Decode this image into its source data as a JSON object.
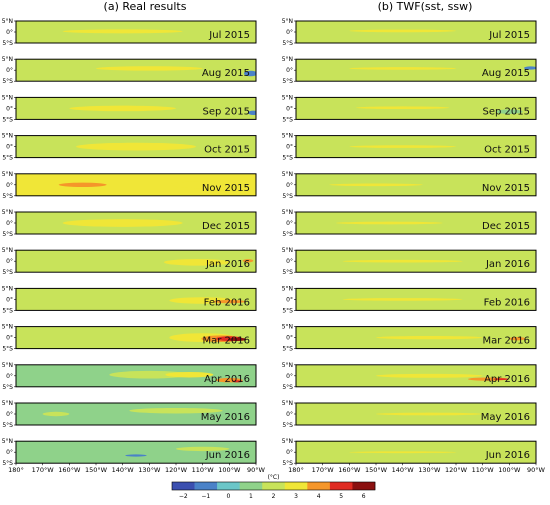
{
  "chart_data": {
    "type": "heatmap",
    "panel_titles": [
      "(a) Real results",
      "(b) TWF(sst, ssw)"
    ],
    "months": [
      "Jul 2015",
      "Aug 2015",
      "Sep 2015",
      "Oct 2015",
      "Nov 2015",
      "Dec 2015",
      "Jan 2016",
      "Feb 2016",
      "Mar 2016",
      "Apr 2016",
      "May 2016",
      "Jun 2016"
    ],
    "y_tick_labels": [
      "5°N",
      "0°",
      "5°S"
    ],
    "x_tick_labels": [
      "180°",
      "170°W",
      "160°W",
      "150°W",
      "140°W",
      "130°W",
      "120°W",
      "110°W",
      "100°W",
      "90°W"
    ],
    "lon_range": [
      -180,
      -90
    ],
    "lat_range": [
      -5,
      5
    ],
    "colorbar": {
      "ticks": [
        "−2",
        "−1",
        "0",
        "1",
        "2",
        "3",
        "4",
        "5",
        "6"
      ],
      "unit": "(°C)",
      "levels": [
        -2,
        -1,
        0,
        1,
        2,
        3,
        4,
        5,
        6
      ],
      "colors": [
        "#3b4fb0",
        "#4a82c8",
        "#6bc6c8",
        "#8fd28a",
        "#c8e35a",
        "#f0e637",
        "#f5962a",
        "#e02b22",
        "#8b1010"
      ]
    },
    "panels": {
      "real": [
        {
          "base": 2,
          "blobs": [
            {
              "lon": -140,
              "lat": 0.3,
              "w": 45,
              "h": 1.8,
              "v": 3
            }
          ]
        },
        {
          "base": 2,
          "blobs": [
            {
              "lon": -130,
              "lat": 0.8,
              "w": 40,
              "h": 2.0,
              "v": 3
            },
            {
              "lon": -92,
              "lat": -1.5,
              "w": 5,
              "h": 2.5,
              "v": -1
            }
          ]
        },
        {
          "base": 2,
          "blobs": [
            {
              "lon": -140,
              "lat": 0.0,
              "w": 40,
              "h": 2.5,
              "v": 3
            },
            {
              "lon": -91,
              "lat": -2,
              "w": 4,
              "h": 2,
              "v": -1
            }
          ]
        },
        {
          "base": 2,
          "blobs": [
            {
              "lon": -135,
              "lat": 0.0,
              "w": 45,
              "h": 3.5,
              "v": 3
            }
          ]
        },
        {
          "base": 3,
          "blobs": [
            {
              "lon": -155,
              "lat": 0.0,
              "w": 18,
              "h": 2.0,
              "v": 4
            },
            {
              "lon": -110,
              "lat": 0.0,
              "w": 25,
              "h": 3.0,
              "v": 3
            }
          ]
        },
        {
          "base": 2,
          "blobs": [
            {
              "lon": -140,
              "lat": 0.0,
              "w": 45,
              "h": 3.5,
              "v": 3
            }
          ]
        },
        {
          "base": 2,
          "blobs": [
            {
              "lon": -112,
              "lat": -0.5,
              "w": 25,
              "h": 3.0,
              "v": 3
            },
            {
              "lon": -93,
              "lat": 0.2,
              "w": 4,
              "h": 1.5,
              "v": 4
            }
          ]
        },
        {
          "base": 2,
          "blobs": [
            {
              "lon": -110,
              "lat": -0.5,
              "w": 25,
              "h": 3.0,
              "v": 3
            },
            {
              "lon": -100,
              "lat": -1,
              "w": 12,
              "h": 1.5,
              "v": 4
            }
          ]
        },
        {
          "base": 2,
          "blobs": [
            {
              "lon": -110,
              "lat": 0.0,
              "w": 25,
              "h": 4.0,
              "v": 3
            },
            {
              "lon": -103,
              "lat": -0.5,
              "w": 15,
              "h": 3.0,
              "v": 4
            },
            {
              "lon": -100,
              "lat": -0.5,
              "w": 10,
              "h": 2.2,
              "v": 5
            },
            {
              "lon": -97,
              "lat": -0.8,
              "w": 7,
              "h": 1.5,
              "v": 6
            }
          ]
        },
        {
          "base": 1,
          "blobs": [
            {
              "lon": -130,
              "lat": 0.5,
              "w": 30,
              "h": 3.5,
              "v": 2
            },
            {
              "lon": -115,
              "lat": 0.5,
              "w": 18,
              "h": 2.5,
              "v": 3
            },
            {
              "lon": -100,
              "lat": -2,
              "w": 10,
              "h": 2,
              "v": 4
            },
            {
              "lon": -97,
              "lat": -2.5,
              "w": 4,
              "h": 1,
              "v": 5
            }
          ]
        },
        {
          "base": 1,
          "blobs": [
            {
              "lon": -120,
              "lat": 1.5,
              "w": 35,
              "h": 2.5,
              "v": 2
            },
            {
              "lon": -165,
              "lat": 0,
              "w": 10,
              "h": 2,
              "v": 2
            }
          ]
        },
        {
          "base": 1,
          "blobs": [
            {
              "lon": -135,
              "lat": -1.5,
              "w": 8,
              "h": 1.0,
              "v": -1
            },
            {
              "lon": -110,
              "lat": 1.5,
              "w": 20,
              "h": 2.0,
              "v": 2
            }
          ]
        }
      ],
      "twf": [
        {
          "base": 2,
          "blobs": [
            {
              "lon": -140,
              "lat": 0.5,
              "w": 40,
              "h": 1.2,
              "v": 3
            }
          ]
        },
        {
          "base": 2,
          "blobs": [
            {
              "lon": -140,
              "lat": 0.8,
              "w": 40,
              "h": 1.2,
              "v": 3
            },
            {
              "lon": -92,
              "lat": 1,
              "w": 5,
              "h": 1.5,
              "v": -1
            }
          ]
        },
        {
          "base": 2,
          "blobs": [
            {
              "lon": -140,
              "lat": 0.3,
              "w": 35,
              "h": 1.2,
              "v": 3
            },
            {
              "lon": -100,
              "lat": -1.5,
              "w": 10,
              "h": 2,
              "v": 1
            }
          ]
        },
        {
          "base": 2,
          "blobs": [
            {
              "lon": -140,
              "lat": 0.0,
              "w": 40,
              "h": 1.2,
              "v": 3
            }
          ]
        },
        {
          "base": 2,
          "blobs": [
            {
              "lon": -150,
              "lat": 0.0,
              "w": 35,
              "h": 1.2,
              "v": 3
            }
          ]
        },
        {
          "base": 2,
          "blobs": [
            {
              "lon": -145,
              "lat": 0.0,
              "w": 40,
              "h": 1.2,
              "v": 3
            }
          ]
        },
        {
          "base": 2,
          "blobs": [
            {
              "lon": -140,
              "lat": 0.0,
              "w": 45,
              "h": 1.2,
              "v": 3
            }
          ]
        },
        {
          "base": 2,
          "blobs": [
            {
              "lon": -140,
              "lat": 0.0,
              "w": 45,
              "h": 1.2,
              "v": 3
            }
          ]
        },
        {
          "base": 2,
          "blobs": [
            {
              "lon": -130,
              "lat": 0.0,
              "w": 40,
              "h": 1.5,
              "v": 3
            },
            {
              "lon": -97,
              "lat": -0.5,
              "w": 6,
              "h": 1.5,
              "v": 4
            }
          ]
        },
        {
          "base": 2,
          "blobs": [
            {
              "lon": -130,
              "lat": 0.0,
              "w": 40,
              "h": 1.8,
              "v": 3
            },
            {
              "lon": -108,
              "lat": -1.5,
              "w": 15,
              "h": 1.5,
              "v": 4
            },
            {
              "lon": -103,
              "lat": -1.5,
              "w": 6,
              "h": 0.8,
              "v": 5
            }
          ]
        },
        {
          "base": 2,
          "blobs": [
            {
              "lon": -130,
              "lat": 0.0,
              "w": 40,
              "h": 1.2,
              "v": 3
            }
          ]
        },
        {
          "base": 2,
          "blobs": [
            {
              "lon": -140,
              "lat": 0.0,
              "w": 40,
              "h": 0.8,
              "v": 3
            }
          ]
        }
      ]
    }
  }
}
